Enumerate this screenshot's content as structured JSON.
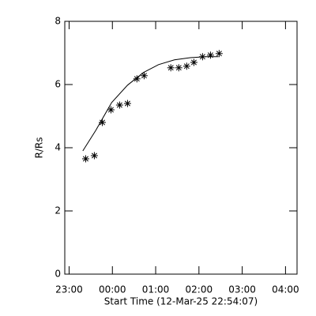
{
  "chart_data": {
    "type": "scatter",
    "xlabel": "Start Time (12-Mar-25 22:54:07)",
    "ylabel": "R/Rs",
    "xlim": [
      "22:54",
      "04:16"
    ],
    "xticks": [
      "23:00",
      "00:00",
      "01:00",
      "02:00",
      "03:00",
      "04:00"
    ],
    "ylim": [
      0,
      8
    ],
    "yticks": [
      0,
      2,
      4,
      6,
      8
    ],
    "series": [
      {
        "style": "asterisk",
        "color": "#000000",
        "x": [
          "23:23",
          "23:35",
          "23:46",
          "23:58",
          "00:10",
          "00:21",
          "00:34",
          "00:44",
          "01:21",
          "01:32",
          "01:43",
          "01:53",
          "02:05",
          "02:16",
          "02:28"
        ],
        "values": [
          3.65,
          3.75,
          4.8,
          5.2,
          5.35,
          5.4,
          6.18,
          6.28,
          6.53,
          6.53,
          6.58,
          6.7,
          6.88,
          6.93,
          6.98
        ]
      },
      {
        "style": "line",
        "color": "#000000",
        "x": [
          "23:19",
          "23:37",
          "23:59",
          "00:21",
          "00:43",
          "01:04",
          "01:26",
          "01:48",
          "02:10",
          "02:27"
        ],
        "values": [
          3.9,
          4.55,
          5.43,
          5.98,
          6.38,
          6.63,
          6.78,
          6.85,
          6.88,
          6.88
        ]
      }
    ]
  }
}
